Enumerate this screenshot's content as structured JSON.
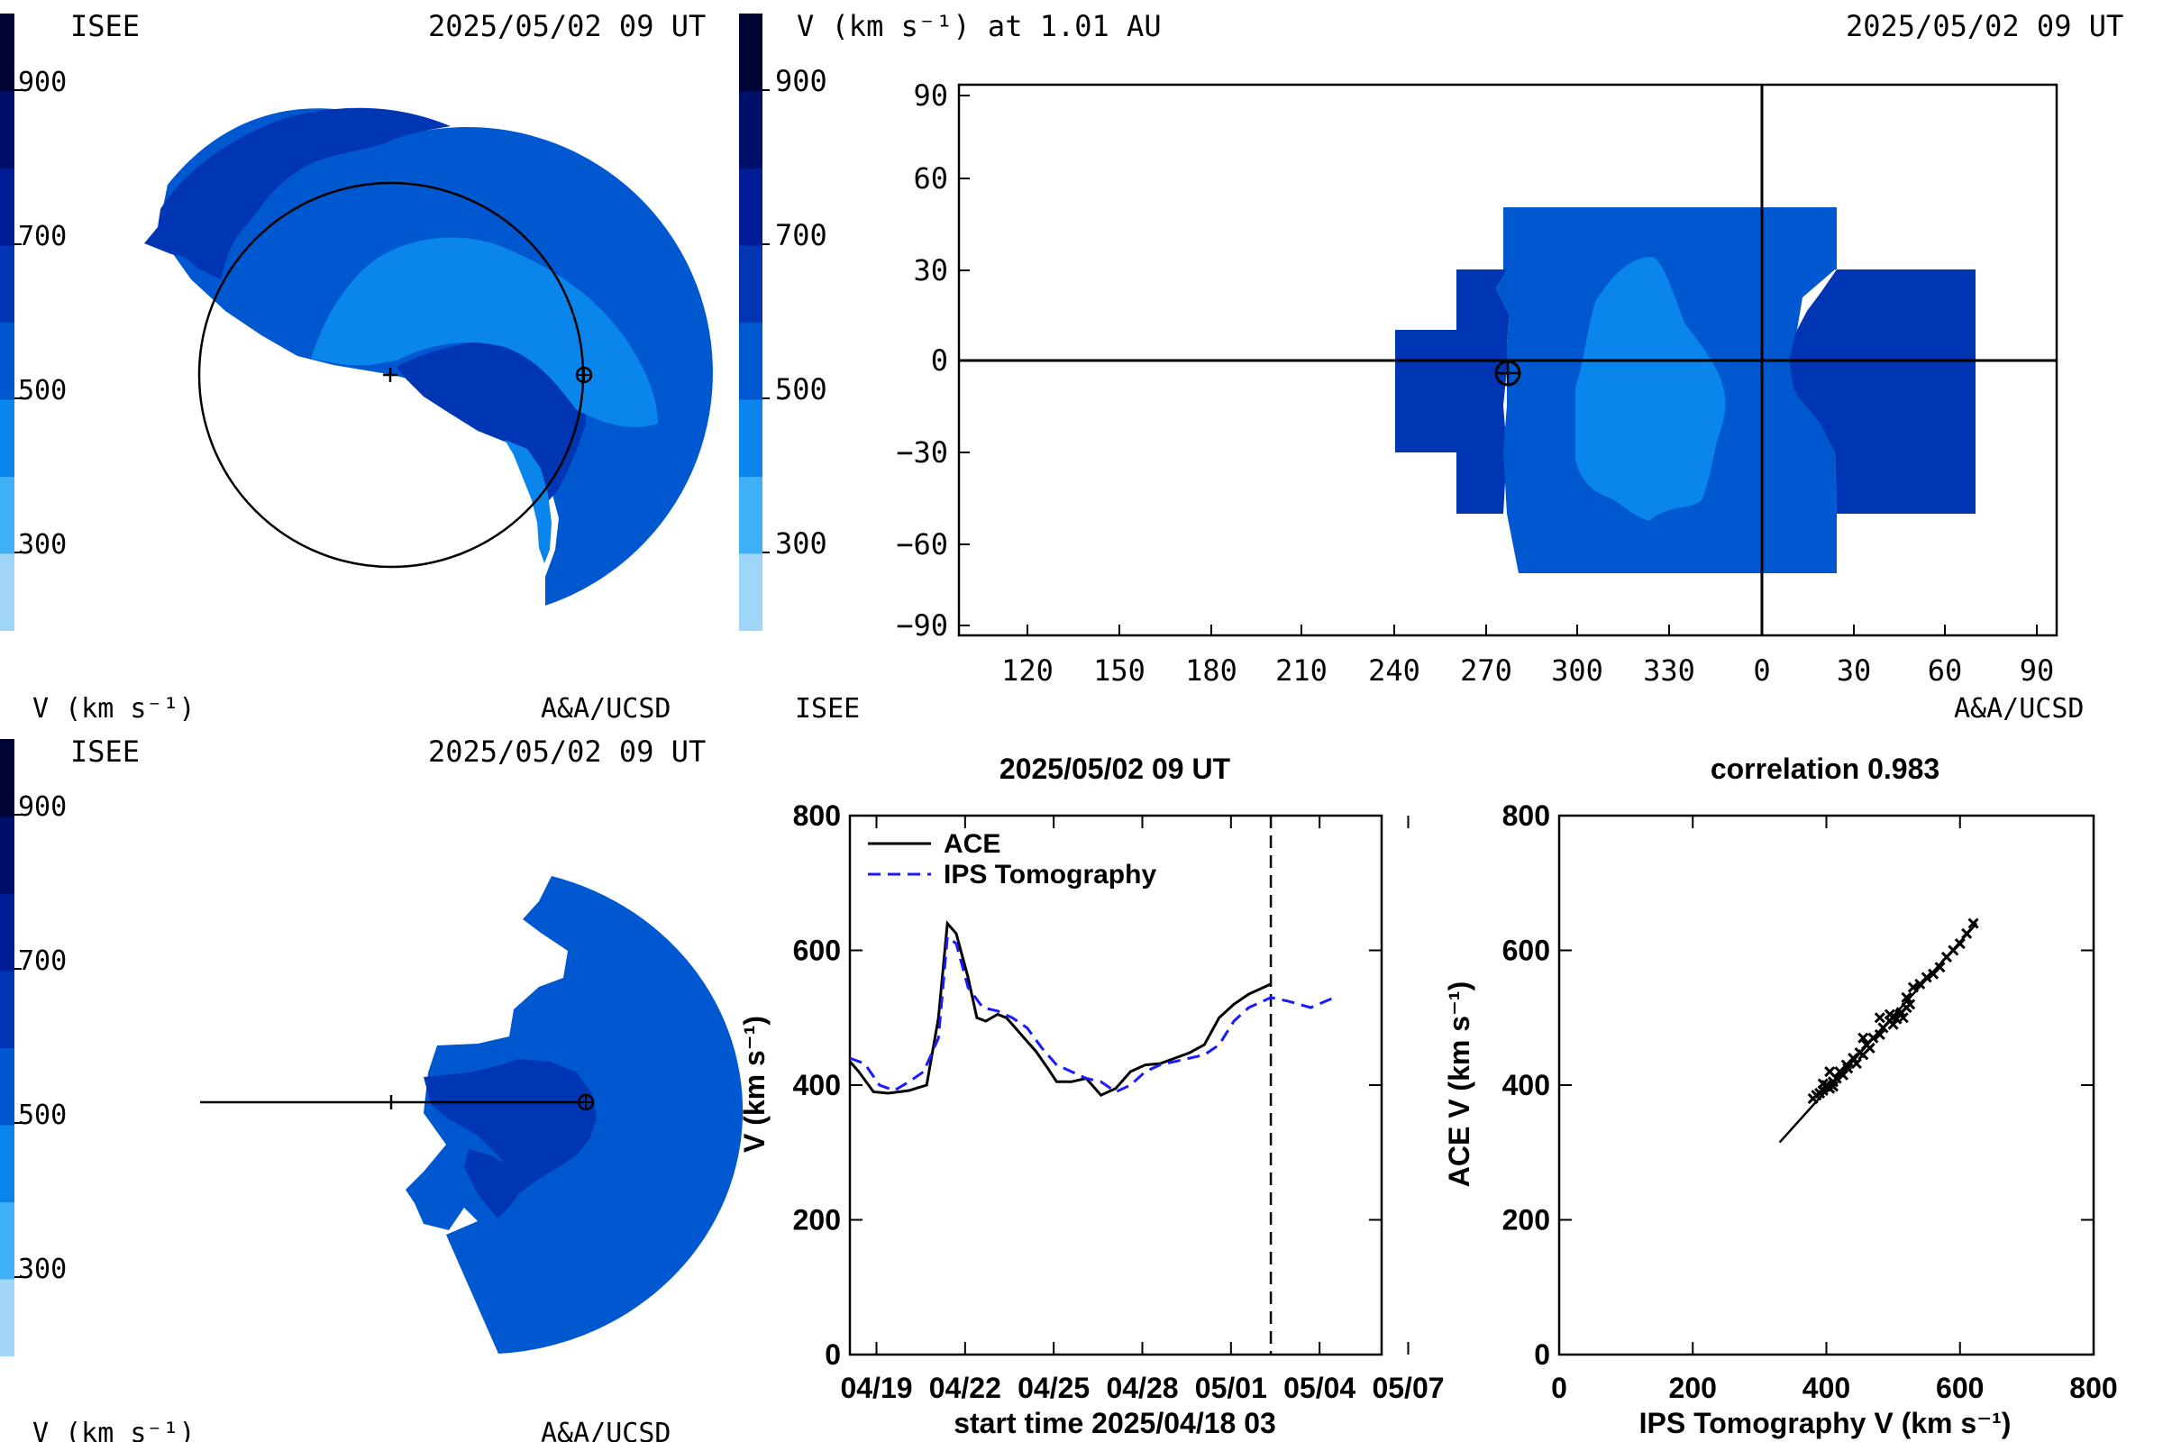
{
  "palette": [
    "#9fd6f8",
    "#3fb0f8",
    "#0a85ec",
    "#0058d0",
    "#0036b4",
    "#001c96",
    "#000f6a",
    "#000535"
  ],
  "colorbar_ticks": [
    "900",
    "700",
    "500",
    "300"
  ],
  "panel_tl": {
    "label_left": "ISEE",
    "timestamp": "2025/05/02 09 UT",
    "credit": "A&A/UCSD",
    "unit_label": "V (km s⁻¹)"
  },
  "panel_bl": {
    "label_left": "ISEE",
    "timestamp": "2025/05/02 09 UT",
    "credit": "A&A/UCSD",
    "unit_label": "V (km s⁻¹)"
  },
  "panel_tr": {
    "title": "V (km s⁻¹) at 1.01 AU",
    "timestamp": "2025/05/02 09 UT",
    "label_left": "ISEE",
    "credit": "A&A/UCSD",
    "x_ticks": [
      "120",
      "150",
      "180",
      "210",
      "240",
      "270",
      "300",
      "330",
      "0",
      "30",
      "60",
      "90"
    ],
    "y_ticks": [
      "90",
      "60",
      "30",
      "0",
      "−30",
      "−60",
      "−90"
    ]
  },
  "chart_data": [
    {
      "type": "heatmap",
      "subtype": "ecliptic-polar-view",
      "value_scale": [
        200,
        1000
      ],
      "observer_marker": "earth-symbol"
    },
    {
      "type": "heatmap",
      "subtype": "meridional-view",
      "value_scale": [
        200,
        1000
      ],
      "observer_marker": "earth-symbol"
    },
    {
      "type": "heatmap",
      "subtype": "carrington-map",
      "xlabel": "",
      "ylabel": "",
      "x_ticks": [
        120,
        150,
        180,
        210,
        240,
        270,
        300,
        330,
        0,
        30,
        60,
        90
      ],
      "ylim": [
        -90,
        90
      ],
      "earth_position": [
        275,
        -4
      ]
    },
    {
      "type": "line",
      "title": "2025/05/02 09 UT",
      "xlabel": "start time 2025/04/18 03",
      "ylabel": "V (km s⁻¹)",
      "x_ticks": [
        "04/19",
        "04/22",
        "04/25",
        "04/28",
        "05/01",
        "05/04",
        "05/07"
      ],
      "xlim_days": [
        0,
        18
      ],
      "ylim": [
        0,
        800
      ],
      "y_ticks": [
        0,
        200,
        400,
        600,
        800
      ],
      "current_time_day": 14.25,
      "series": [
        {
          "name": "ACE",
          "x": [
            0,
            0.3,
            0.8,
            1.3,
            2,
            2.6,
            3,
            3.3,
            3.6,
            4,
            4.3,
            4.6,
            5,
            5.3,
            5.6,
            5.9,
            6.3,
            6.7,
            7,
            7.5,
            8,
            8.5,
            9,
            9.5,
            10,
            10.5,
            11,
            11.5,
            12,
            12.5,
            13,
            13.5,
            14,
            14.25
          ],
          "values": [
            435,
            420,
            390,
            388,
            392,
            400,
            500,
            640,
            625,
            560,
            500,
            495,
            505,
            500,
            485,
            470,
            450,
            425,
            405,
            405,
            410,
            385,
            395,
            420,
            430,
            432,
            440,
            448,
            460,
            500,
            520,
            535,
            545,
            550
          ]
        },
        {
          "name": "IPS Tomography",
          "x": [
            0,
            0.5,
            1,
            1.5,
            2,
            2.5,
            3,
            3.3,
            3.6,
            4,
            4.5,
            5,
            5.5,
            6,
            6.5,
            7,
            7.5,
            8,
            8.5,
            9,
            9.5,
            10,
            10.5,
            11,
            11.5,
            12,
            12.5,
            13,
            13.5,
            14,
            14.25,
            14.8,
            15.6,
            16.4
          ],
          "values": [
            440,
            432,
            400,
            392,
            405,
            420,
            470,
            620,
            610,
            545,
            515,
            510,
            500,
            485,
            455,
            430,
            420,
            410,
            405,
            390,
            400,
            420,
            430,
            435,
            440,
            445,
            460,
            495,
            515,
            525,
            530,
            525,
            515,
            530
          ]
        }
      ]
    },
    {
      "type": "scatter",
      "title": "correlation 0.983",
      "xlabel": "IPS Tomography V (km s⁻¹)",
      "ylabel": "ACE V (km s⁻¹)",
      "xlim": [
        0,
        800
      ],
      "ylim": [
        0,
        800
      ],
      "x_ticks": [
        0,
        200,
        400,
        600,
        800
      ],
      "y_ticks": [
        0,
        200,
        400,
        600,
        800
      ],
      "fit_line": [
        [
          330,
          315
        ],
        [
          625,
          640
        ]
      ],
      "points": [
        [
          385,
          385
        ],
        [
          390,
          388
        ],
        [
          395,
          392
        ],
        [
          400,
          400
        ],
        [
          405,
          395
        ],
        [
          410,
          405
        ],
        [
          415,
          410
        ],
        [
          420,
          420
        ],
        [
          425,
          415
        ],
        [
          430,
          430
        ],
        [
          432,
          425
        ],
        [
          440,
          440
        ],
        [
          445,
          432
        ],
        [
          450,
          448
        ],
        [
          455,
          445
        ],
        [
          460,
          460
        ],
        [
          465,
          455
        ],
        [
          470,
          470
        ],
        [
          480,
          475
        ],
        [
          485,
          485
        ],
        [
          495,
          495
        ],
        [
          500,
          500
        ],
        [
          505,
          498
        ],
        [
          510,
          505
        ],
        [
          515,
          500
        ],
        [
          520,
          515
        ],
        [
          525,
          520
        ],
        [
          530,
          545
        ],
        [
          540,
          550
        ],
        [
          550,
          560
        ],
        [
          560,
          565
        ],
        [
          570,
          575
        ],
        [
          580,
          590
        ],
        [
          590,
          600
        ],
        [
          600,
          610
        ],
        [
          610,
          625
        ],
        [
          620,
          640
        ],
        [
          500,
          490
        ],
        [
          495,
          505
        ],
        [
          405,
          420
        ],
        [
          395,
          402
        ],
        [
          410,
          398
        ],
        [
          455,
          470
        ],
        [
          480,
          500
        ],
        [
          512,
          508
        ],
        [
          520,
          530
        ],
        [
          380,
          380
        ]
      ]
    }
  ],
  "line_chart": {
    "title": "2025/05/02 09 UT",
    "xlabel": "start time 2025/04/18 03",
    "ylabel": "V (km s⁻¹)",
    "y_ticks": [
      "0",
      "200",
      "400",
      "600",
      "800"
    ],
    "x_ticks": [
      "04/19",
      "04/22",
      "04/25",
      "04/28",
      "05/01",
      "05/04",
      "05/07"
    ],
    "legend_ace": "ACE",
    "legend_ips": "IPS Tomography"
  },
  "scatter_chart": {
    "title": "correlation 0.983",
    "xlabel": "IPS Tomography V (km s⁻¹)",
    "ylabel": "ACE V (km s⁻¹)",
    "ticks": [
      "0",
      "200",
      "400",
      "600",
      "800"
    ]
  }
}
